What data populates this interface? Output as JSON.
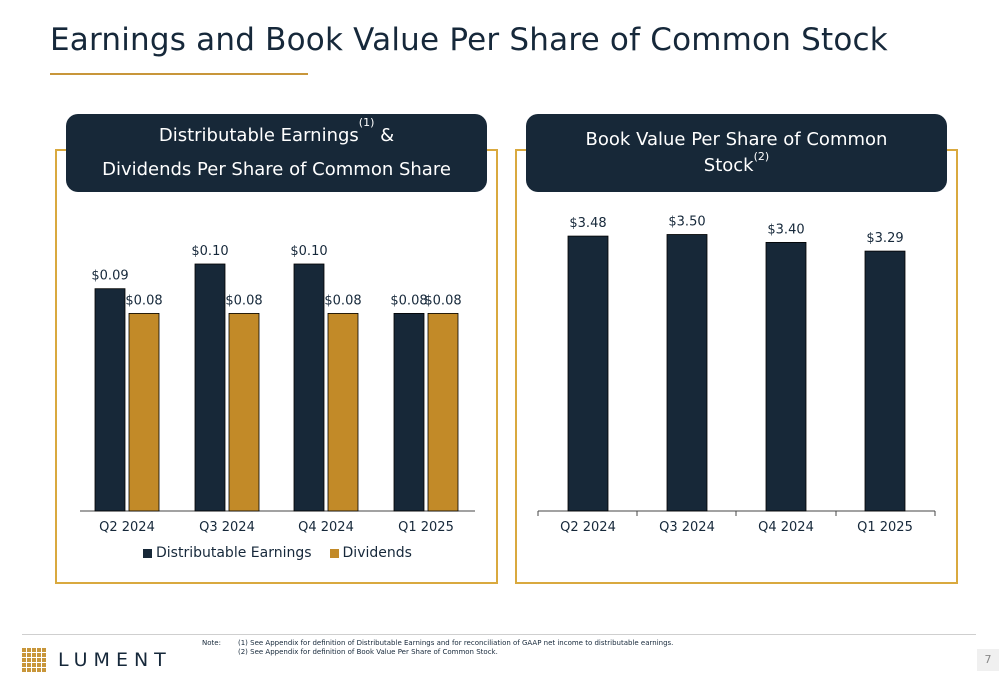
{
  "page": {
    "title": "Earnings and Book Value Per Share of Common Stock",
    "page_number": "7",
    "logo_text": "LUMENT",
    "note_label": "Note:",
    "notes": [
      "(1) See Appendix for definition of Distributable Earnings and for reconciliation of GAAP net income to distributable earnings.",
      "(2) See Appendix for definition of Book Value Per Share of Common Stock."
    ]
  },
  "colors": {
    "navy": "#172838",
    "gold": "#c28a28",
    "accent": "#d9a93f"
  },
  "chart_data": [
    {
      "type": "bar",
      "title_line1": "Distributable Earnings",
      "title_sup": "(1)",
      "title_line1_suffix": " &",
      "title_line2": "Dividends Per Share of Common Share",
      "categories": [
        "Q2 2024",
        "Q3 2024",
        "Q4 2024",
        "Q1 2025"
      ],
      "series": [
        {
          "name": "Distributable Earnings",
          "values": [
            0.09,
            0.1,
            0.1,
            0.08
          ],
          "labels": [
            "$0.09",
            "$0.10",
            "$0.10",
            "$0.08"
          ],
          "color": "#172838"
        },
        {
          "name": "Dividends",
          "values": [
            0.08,
            0.08,
            0.08,
            0.08
          ],
          "labels": [
            "$0.08",
            "$0.08",
            "$0.08",
            "$0.08"
          ],
          "color": "#c28a28"
        }
      ],
      "legend": "bottom",
      "grid": false
    },
    {
      "type": "bar",
      "title_line1": "Book Value Per Share of Common",
      "title_line2": "Stock",
      "title_sup": "(2)",
      "categories": [
        "Q2 2024",
        "Q3 2024",
        "Q4 2024",
        "Q1 2025"
      ],
      "series": [
        {
          "values": [
            3.48,
            3.5,
            3.4,
            3.29
          ],
          "labels": [
            "$3.48",
            "$3.50",
            "$3.40",
            "$3.29"
          ],
          "color": "#172838"
        }
      ],
      "grid": false
    }
  ]
}
